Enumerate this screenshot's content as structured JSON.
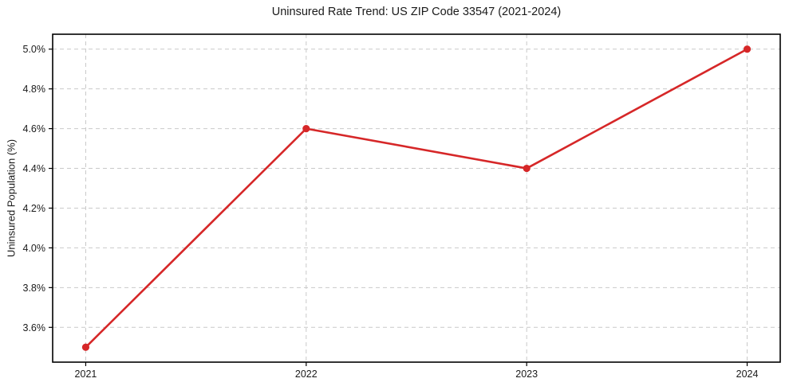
{
  "chart_data": {
    "type": "line",
    "title": "Uninsured Rate Trend: US ZIP Code 33547 (2021-2024)",
    "xlabel": "",
    "ylabel": "Uninsured Population (%)",
    "x": [
      2021,
      2022,
      2023,
      2024
    ],
    "values": [
      3.5,
      4.6,
      4.4,
      5.0
    ],
    "x_tick_labels": [
      "2021",
      "2022",
      "2023",
      "2024"
    ],
    "y_tick_values": [
      3.6,
      3.8,
      4.0,
      4.2,
      4.4,
      4.6,
      4.8,
      5.0
    ],
    "y_tick_labels": [
      "3.6%",
      "3.8%",
      "4.0%",
      "4.2%",
      "4.4%",
      "4.6%",
      "4.8%",
      "5.0%"
    ],
    "xlim": [
      2020.85,
      2024.15
    ],
    "ylim": [
      3.425,
      5.075
    ],
    "grid": true,
    "grid_style": "dashed",
    "legend": "none",
    "colors": {
      "line": "#d62728",
      "marker": "#d62728",
      "grid": "#c9c9c9",
      "spine": "#000000",
      "text": "#1a1a1a",
      "background": "#ffffff"
    }
  }
}
